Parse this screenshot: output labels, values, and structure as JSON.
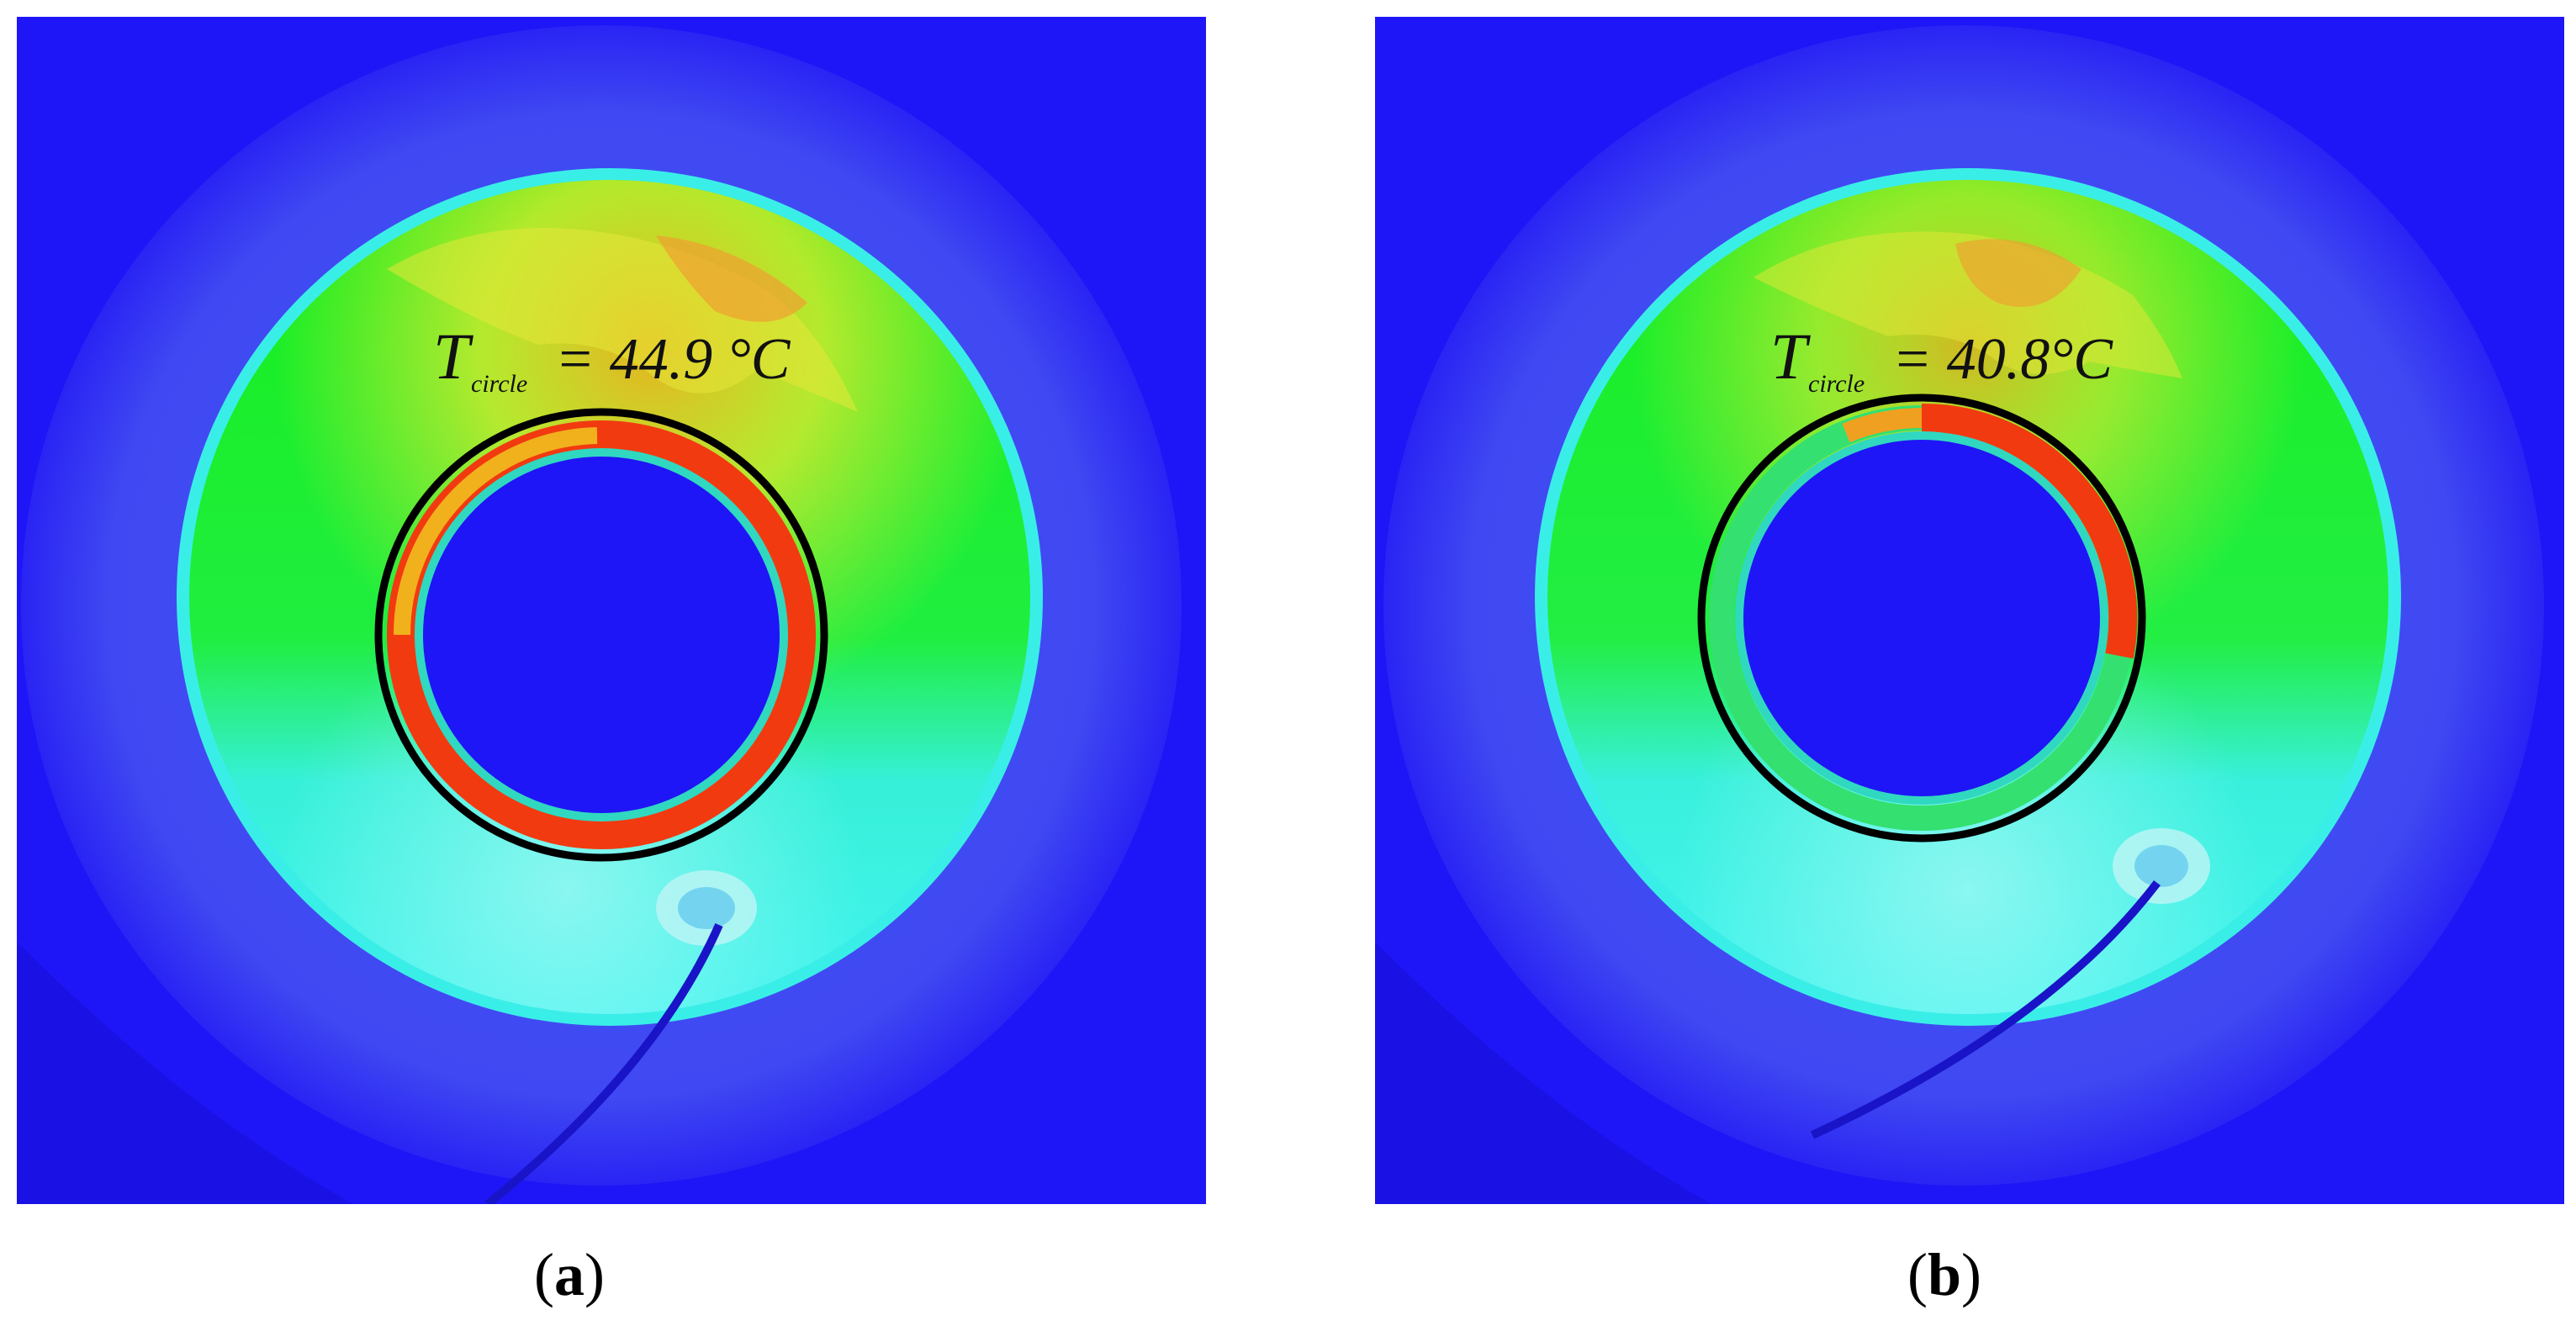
{
  "panels": [
    {
      "id": "a",
      "caption_open": "(",
      "caption_letter": "a",
      "caption_close": ")",
      "temp_symbol": "T",
      "temp_subscript": "circle",
      "temp_value": "= 44.9 °C"
    },
    {
      "id": "b",
      "caption_open": "(",
      "caption_letter": "b",
      "caption_close": ")",
      "temp_symbol": "T",
      "temp_subscript": "circle",
      "temp_value": "= 40.8°C"
    }
  ],
  "colors": {
    "background_blue": "#1e16f6",
    "outer_disk": "#3f46f2",
    "cool_cyan": "#33f0f0",
    "mid_green": "#16ee1a",
    "warm_yellow": "#e8ee30",
    "hot_orange": "#f0a020",
    "hot_red": "#f23a10",
    "circle_outline": "#000000"
  }
}
